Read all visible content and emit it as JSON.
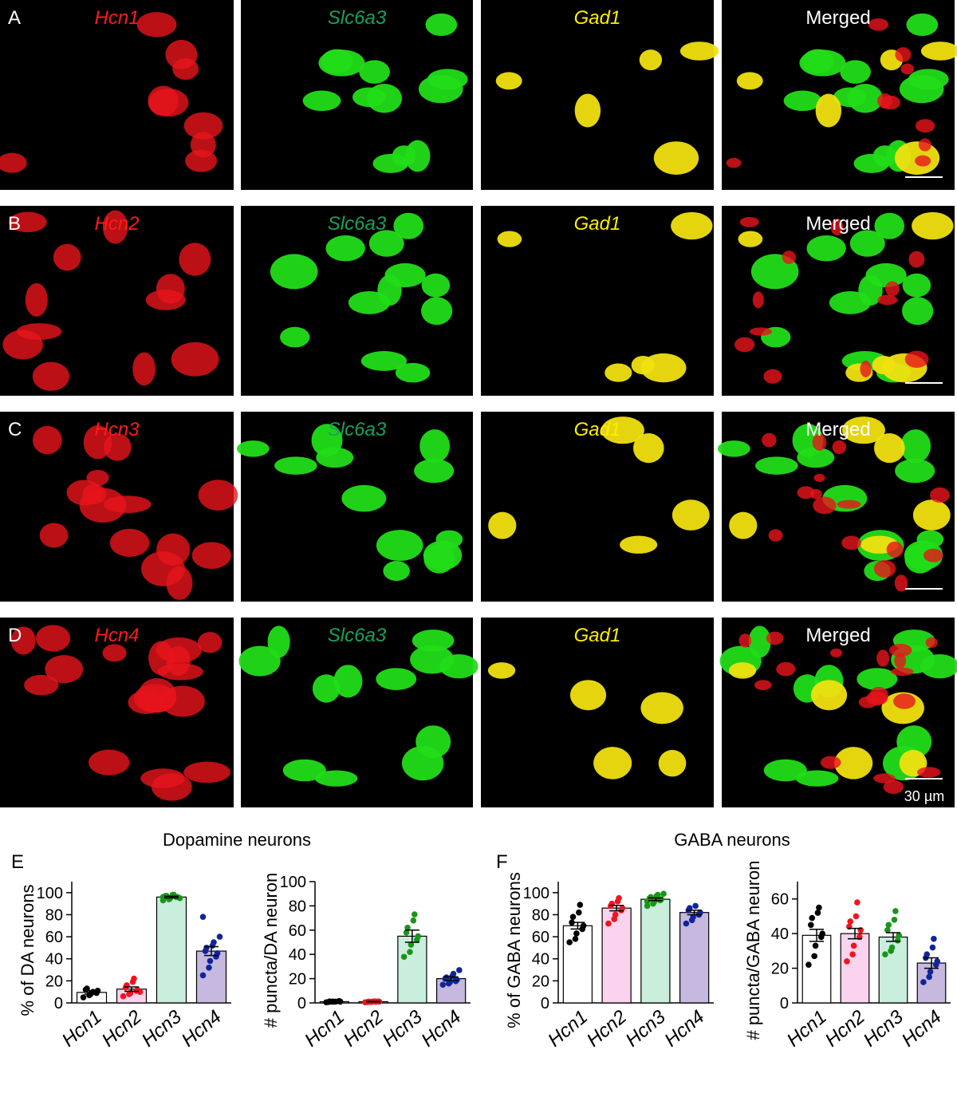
{
  "image_rows": [
    {
      "label": "A",
      "channels": [
        "Hcn1",
        "Slc6a3",
        "Gad1",
        "Merged"
      ]
    },
    {
      "label": "B",
      "channels": [
        "Hcn2",
        "Slc6a3",
        "Gad1",
        "Merged"
      ]
    },
    {
      "label": "C",
      "channels": [
        "Hcn3",
        "Slc6a3",
        "Gad1",
        "Merged"
      ]
    },
    {
      "label": "D",
      "channels": [
        "Hcn4",
        "Slc6a3",
        "Gad1",
        "Merged"
      ]
    }
  ],
  "scale_bar_label": "30 µm",
  "chart_groups": [
    {
      "label": "E",
      "title": "Dopamine neurons"
    },
    {
      "label": "F",
      "title": "GABA neurons"
    }
  ],
  "chart_data": [
    {
      "type": "bar",
      "ylabel": "% of DA neurons",
      "categories": [
        "Hcn1",
        "Hcn2",
        "Hcn3",
        "Hcn4"
      ],
      "values": [
        9.5,
        12.5,
        96,
        47
      ],
      "errors": [
        1.5,
        2,
        0.7,
        4
      ],
      "bar_colors": [
        "#ffffff",
        "#fbd3ee",
        "#c9eedc",
        "#c6b8de"
      ],
      "point_colors": [
        "#000000",
        "#f0141e",
        "#1a951a",
        "#10259a"
      ],
      "points": [
        [
          5,
          7,
          8,
          9,
          11,
          12,
          13,
          10
        ],
        [
          6,
          8,
          9,
          11,
          12,
          14,
          16,
          19,
          22,
          10
        ],
        [
          93,
          94,
          95,
          96,
          96,
          97,
          97,
          98,
          98,
          95,
          96
        ],
        [
          25,
          32,
          38,
          42,
          45,
          47,
          50,
          52,
          55,
          60,
          78
        ]
      ],
      "ylim": [
        0,
        110
      ],
      "yticks": [
        0,
        20,
        40,
        60,
        80,
        100
      ]
    },
    {
      "type": "bar",
      "ylabel": "# puncta/DA neuron",
      "categories": [
        "Hcn1",
        "Hcn2",
        "Hcn3",
        "Hcn4"
      ],
      "values": [
        1,
        1,
        55,
        20
      ],
      "errors": [
        0.2,
        0.2,
        5,
        1.5
      ],
      "bar_colors": [
        "#ffffff",
        "#fbd3ee",
        "#c9eedc",
        "#c6b8de"
      ],
      "point_colors": [
        "#000000",
        "#f0141e",
        "#1a951a",
        "#10259a"
      ],
      "points": [
        [
          0.5,
          1,
          1,
          1.5,
          1,
          0.8,
          1.2,
          1
        ],
        [
          0.5,
          0.8,
          1,
          1.2,
          1,
          0.7,
          1,
          1.3,
          0.9
        ],
        [
          38,
          42,
          48,
          52,
          55,
          58,
          62,
          68,
          73
        ],
        [
          15,
          16,
          17,
          18,
          19,
          20,
          21,
          22,
          24,
          27
        ]
      ],
      "ylim": [
        0,
        100
      ],
      "yticks": [
        0,
        20,
        40,
        60,
        80,
        100
      ]
    },
    {
      "type": "bar",
      "ylabel": "% of GABA neurons",
      "categories": [
        "Hcn1",
        "Hcn2",
        "Hcn3",
        "Hcn4"
      ],
      "values": [
        70,
        86,
        94,
        82
      ],
      "errors": [
        3,
        2.5,
        1.2,
        2
      ],
      "bar_colors": [
        "#ffffff",
        "#fbd3ee",
        "#c9eedc",
        "#c6b8de"
      ],
      "point_colors": [
        "#000000",
        "#f0141e",
        "#1a951a",
        "#10259a"
      ],
      "points": [
        [
          55,
          58,
          63,
          67,
          70,
          73,
          78,
          82,
          89
        ],
        [
          72,
          76,
          80,
          84,
          86,
          88,
          90,
          92,
          95
        ],
        [
          88,
          90,
          92,
          93,
          94,
          95,
          96,
          97,
          98,
          99,
          92
        ],
        [
          72,
          75,
          78,
          80,
          82,
          84,
          86,
          88
        ]
      ],
      "ylim": [
        0,
        110
      ],
      "yticks": [
        0,
        20,
        40,
        60,
        80,
        100
      ]
    },
    {
      "type": "bar",
      "ylabel": "# puncta/GABA neuron",
      "categories": [
        "Hcn1",
        "Hcn2",
        "Hcn3",
        "Hcn4"
      ],
      "values": [
        39,
        40,
        38,
        23
      ],
      "errors": [
        3.5,
        3,
        2.5,
        3
      ],
      "bar_colors": [
        "#ffffff",
        "#fbd3ee",
        "#c9eedc",
        "#c6b8de"
      ],
      "point_colors": [
        "#000000",
        "#f0141e",
        "#1a951a",
        "#10259a"
      ],
      "points": [
        [
          22,
          27,
          33,
          38,
          40,
          45,
          49,
          52,
          55
        ],
        [
          24,
          28,
          33,
          38,
          42,
          44,
          47,
          50,
          58
        ],
        [
          28,
          30,
          32,
          36,
          39,
          42,
          45,
          48,
          53
        ],
        [
          12,
          15,
          18,
          22,
          24,
          26,
          28,
          32,
          37
        ]
      ],
      "ylim": [
        0,
        70
      ],
      "yticks": [
        0,
        20,
        40,
        60
      ]
    }
  ]
}
